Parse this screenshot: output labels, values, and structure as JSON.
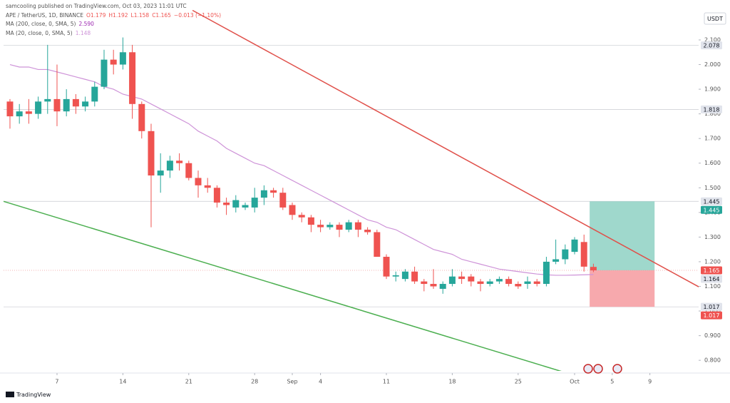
{
  "chart_data": {
    "type": "candlestick",
    "header": "samcooling published on TradingView.com, Oct 03, 2023 11:01 UTC",
    "symbol": "APE / TetherUS, 1D, BINANCE",
    "ohlc_labels": [
      "O1.179",
      "H1.192",
      "L1.158",
      "C1.165"
    ],
    "change_label": "−0.013 (−1.10%)",
    "currency": "USDT",
    "footer": "TradingView",
    "up_color": "#26a69a",
    "down_color": "#ef5350",
    "open": [
      1.85,
      1.79,
      1.81,
      1.8,
      1.85,
      1.86,
      1.81,
      1.86,
      1.83,
      1.85,
      1.91,
      2.02,
      2.0,
      2.05,
      1.84,
      1.73,
      1.55,
      1.57,
      1.61,
      1.6,
      1.54,
      1.51,
      1.5,
      1.44,
      1.42,
      1.42,
      1.42,
      1.46,
      1.49,
      1.48,
      1.43,
      1.39,
      1.38,
      1.35,
      1.34,
      1.35,
      1.33,
      1.36,
      1.33,
      1.32,
      1.22,
      1.14,
      1.13,
      1.16,
      1.12,
      1.11,
      1.09,
      1.11,
      1.14,
      1.14,
      1.12,
      1.11,
      1.12,
      1.13,
      1.11,
      1.11,
      1.12,
      1.11,
      1.2,
      1.21,
      1.24,
      1.28,
      1.179
    ],
    "high": [
      1.86,
      1.84,
      1.86,
      1.87,
      2.08,
      2.0,
      1.9,
      1.88,
      1.87,
      1.93,
      2.06,
      2.06,
      2.11,
      2.08,
      1.85,
      1.76,
      1.64,
      1.63,
      1.64,
      1.61,
      1.57,
      1.54,
      1.51,
      1.46,
      1.47,
      1.44,
      1.5,
      1.51,
      1.5,
      1.5,
      1.44,
      1.4,
      1.39,
      1.37,
      1.36,
      1.36,
      1.37,
      1.37,
      1.34,
      1.33,
      1.23,
      1.16,
      1.17,
      1.18,
      1.13,
      1.17,
      1.12,
      1.17,
      1.16,
      1.15,
      1.13,
      1.13,
      1.14,
      1.14,
      1.12,
      1.14,
      1.13,
      1.22,
      1.29,
      1.27,
      1.3,
      1.31,
      1.192
    ],
    "low": [
      1.74,
      1.76,
      1.76,
      1.78,
      1.8,
      1.75,
      1.79,
      1.8,
      1.81,
      1.83,
      1.9,
      1.96,
      1.98,
      1.78,
      1.7,
      1.34,
      1.48,
      1.54,
      1.57,
      1.53,
      1.46,
      1.48,
      1.42,
      1.39,
      1.4,
      1.41,
      1.4,
      1.43,
      1.46,
      1.41,
      1.37,
      1.36,
      1.32,
      1.32,
      1.33,
      1.3,
      1.32,
      1.3,
      1.31,
      1.22,
      1.13,
      1.12,
      1.12,
      1.11,
      1.08,
      1.09,
      1.07,
      1.1,
      1.11,
      1.1,
      1.08,
      1.1,
      1.11,
      1.1,
      1.09,
      1.09,
      1.1,
      1.1,
      1.19,
      1.19,
      1.23,
      1.16,
      1.158
    ],
    "close": [
      1.79,
      1.81,
      1.8,
      1.85,
      1.86,
      1.81,
      1.86,
      1.83,
      1.85,
      1.91,
      2.02,
      2.0,
      2.05,
      1.84,
      1.73,
      1.55,
      1.57,
      1.61,
      1.6,
      1.54,
      1.51,
      1.5,
      1.44,
      1.43,
      1.45,
      1.43,
      1.46,
      1.49,
      1.48,
      1.42,
      1.39,
      1.38,
      1.35,
      1.34,
      1.35,
      1.33,
      1.36,
      1.33,
      1.32,
      1.22,
      1.14,
      1.145,
      1.16,
      1.12,
      1.11,
      1.1,
      1.11,
      1.14,
      1.13,
      1.12,
      1.11,
      1.12,
      1.13,
      1.11,
      1.1,
      1.12,
      1.11,
      1.2,
      1.21,
      1.25,
      1.29,
      1.18,
      1.165
    ],
    "indicators": [
      {
        "name": "MA (200, close, 0, SMA, 5)",
        "last": "2.590",
        "color": "#9c27b0"
      },
      {
        "name": "MA (20, close, 0, SMA, 5)",
        "last": "1.148",
        "color": "#ce93d8",
        "values": [
          2.0,
          1.99,
          1.99,
          1.98,
          1.98,
          1.97,
          1.96,
          1.95,
          1.94,
          1.93,
          1.91,
          1.9,
          1.88,
          1.87,
          1.86,
          1.84,
          1.82,
          1.8,
          1.78,
          1.76,
          1.73,
          1.71,
          1.69,
          1.66,
          1.64,
          1.62,
          1.6,
          1.59,
          1.57,
          1.55,
          1.53,
          1.51,
          1.49,
          1.47,
          1.45,
          1.43,
          1.41,
          1.39,
          1.37,
          1.36,
          1.34,
          1.33,
          1.31,
          1.29,
          1.27,
          1.25,
          1.24,
          1.23,
          1.21,
          1.2,
          1.19,
          1.18,
          1.17,
          1.165,
          1.16,
          1.155,
          1.15,
          1.147,
          1.145,
          1.145,
          1.146,
          1.147,
          1.148
        ]
      }
    ],
    "trend_lines": [
      {
        "color": "#e0504a",
        "points": [
          [
            19.4,
            2.22
          ],
          [
            73.2,
            1.098
          ]
        ]
      },
      {
        "color": "#4caf50",
        "points": [
          [
            -0.68,
            1.445
          ],
          [
            59.2,
            0.748
          ]
        ]
      }
    ],
    "position": {
      "entry": 1.165,
      "target": 1.445,
      "stop": 1.017,
      "x": [
        61.6,
        68.5
      ],
      "profit_color": "#9fd8cc",
      "loss_color": "#f7a9ad"
    },
    "price_lines": [
      2.078,
      1.818,
      1.445,
      1.017
    ],
    "axis_labels": [
      {
        "value": 2.078,
        "bg": "#e0e3eb",
        "fg": "#131722"
      },
      {
        "value": 1.818,
        "bg": "#e0e3eb",
        "fg": "#131722"
      },
      {
        "value": 1.445,
        "bg": "#e0e3eb",
        "fg": "#131722"
      },
      {
        "value": 1.445,
        "bg": "#26a69a",
        "fg": "#ffffff"
      },
      {
        "value": 1.165,
        "bg": "#ef5350",
        "fg": "#ffffff"
      },
      {
        "value": 1.164,
        "bg": "#e0e3eb",
        "fg": "#131722"
      },
      {
        "value": 1.017,
        "bg": "#e0e3eb",
        "fg": "#131722"
      },
      {
        "value": 1.017,
        "bg": "#ef5350",
        "fg": "#ffffff"
      }
    ],
    "xlim": [
      -0.68,
      73.18
    ],
    "ylim": [
      0.757,
      2.262
    ],
    "xticks": [
      {
        "value": 5,
        "label": "7"
      },
      {
        "value": 12,
        "label": "14"
      },
      {
        "value": 19,
        "label": "21"
      },
      {
        "value": 26,
        "label": "28"
      },
      {
        "value": 30,
        "label": "Sep"
      },
      {
        "value": 33,
        "label": "4"
      },
      {
        "value": 40,
        "label": "11"
      },
      {
        "value": 47,
        "label": "18"
      },
      {
        "value": 54,
        "label": "25"
      },
      {
        "value": 60,
        "label": "Oct"
      },
      {
        "value": 64,
        "label": "5"
      },
      {
        "value": 68,
        "label": "9"
      }
    ],
    "yticks": [
      {
        "value": 0.8,
        "label": "0.800"
      },
      {
        "value": 0.9,
        "label": "0.900"
      },
      {
        "value": 1.0,
        "label": "1.000"
      },
      {
        "value": 1.1,
        "label": "1.100"
      },
      {
        "value": 1.2,
        "label": "1.200"
      },
      {
        "value": 1.3,
        "label": "1.300"
      },
      {
        "value": 1.4,
        "label": "1.400"
      },
      {
        "value": 1.5,
        "label": "1.500"
      },
      {
        "value": 1.6,
        "label": "1.600"
      },
      {
        "value": 1.7,
        "label": "1.700"
      },
      {
        "value": 1.8,
        "label": "1.800"
      },
      {
        "value": 1.9,
        "label": "1.900"
      },
      {
        "value": 2.0,
        "label": "2.000"
      },
      {
        "value": 2.1,
        "label": "2.100"
      }
    ]
  }
}
